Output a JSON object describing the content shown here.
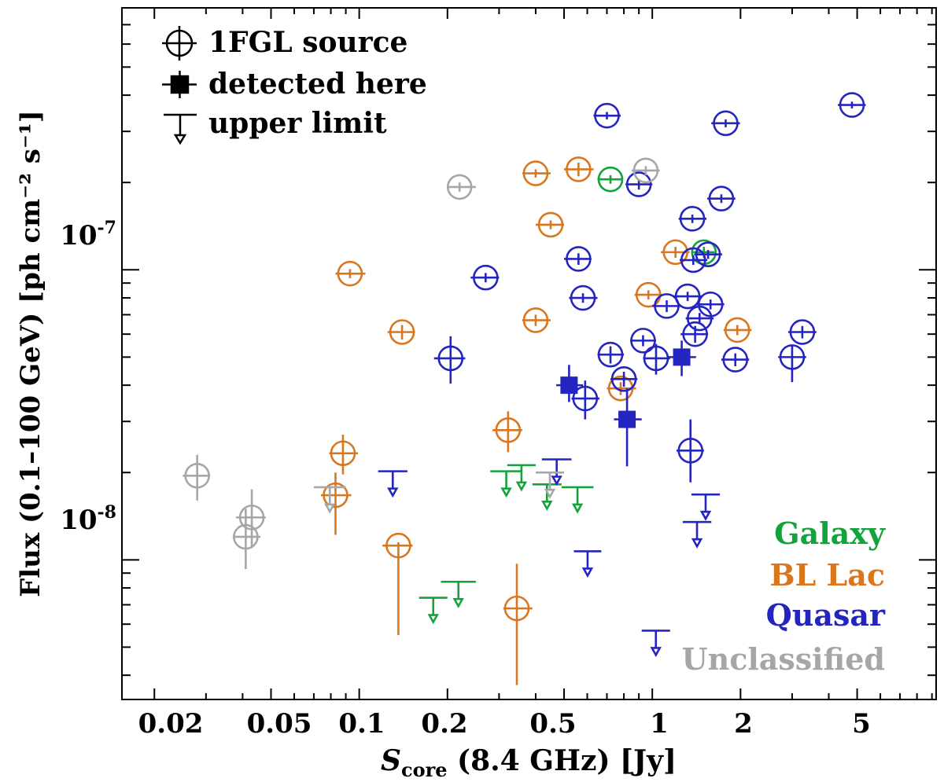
{
  "chart_data": {
    "type": "scatter",
    "title": "",
    "xlabel": {
      "var": "S",
      "sub": "core",
      "rest": "(8.4 GHz) [Jy]"
    },
    "ylabel": "Flux (0.1–100 GeV) [ph cm⁻² s⁻¹]",
    "xscale": "log",
    "yscale": "log",
    "xlim": [
      0.0155,
      9.3
    ],
    "ylim": [
      3.3e-09,
      8e-07
    ],
    "xticklabels": [
      {
        "value": 0.02,
        "label": "0.02"
      },
      {
        "value": 0.05,
        "label": "0.05"
      },
      {
        "value": 0.1,
        "label": "0.1"
      },
      {
        "value": 0.2,
        "label": "0.2"
      },
      {
        "value": 0.5,
        "label": "0.5"
      },
      {
        "value": 1,
        "label": "1"
      },
      {
        "value": 2,
        "label": "2"
      },
      {
        "value": 5,
        "label": "5"
      }
    ],
    "yticklabels": [
      {
        "value": 1e-07,
        "base": "10",
        "exp": "-7"
      },
      {
        "value": 1e-08,
        "base": "10",
        "exp": "-8"
      }
    ],
    "legend": {
      "position": "top-left",
      "items": [
        {
          "marker": "circle-cross",
          "label": "1FGL source"
        },
        {
          "marker": "filled-square",
          "label": "detected here"
        },
        {
          "marker": "upper-limit",
          "label": "upper limit"
        }
      ]
    },
    "classes": [
      {
        "name": "Galaxy",
        "color": "#12a33a"
      },
      {
        "name": "BL Lac",
        "color": "#d9771f"
      },
      {
        "name": "Quasar",
        "color": "#2424c0"
      },
      {
        "name": "Unclassified",
        "color": "#a6a6a6"
      }
    ],
    "series": [
      {
        "name": "Galaxy",
        "color": "#12a33a",
        "sources": [
          {
            "x": 0.72,
            "y": 2.05e-07,
            "xlo": 0.65,
            "xhi": 0.79,
            "ylo": 1.98e-07,
            "yhi": 2.12e-07
          },
          {
            "x": 1.5,
            "y": 1.15e-07,
            "xlo": 1.38,
            "xhi": 1.63,
            "ylo": 1.1e-07,
            "yhi": 1.2e-07
          }
        ],
        "upper_limits": [
          {
            "x": 0.18,
            "y": 7.4e-09,
            "xlo": 0.16,
            "xhi": 0.2
          },
          {
            "x": 0.22,
            "y": 8.4e-09,
            "xlo": 0.19,
            "xhi": 0.25
          },
          {
            "x": 0.32,
            "y": 2.02e-08,
            "xlo": 0.28,
            "xhi": 0.36
          },
          {
            "x": 0.36,
            "y": 2.12e-08,
            "xlo": 0.32,
            "xhi": 0.4
          },
          {
            "x": 0.44,
            "y": 1.82e-08,
            "xlo": 0.39,
            "xhi": 0.49
          },
          {
            "x": 0.56,
            "y": 1.78e-08,
            "xlo": 0.49,
            "xhi": 0.63
          }
        ]
      },
      {
        "name": "BL Lac",
        "color": "#d9771f",
        "sources": [
          {
            "x": 0.093,
            "y": 9.7e-08,
            "xlo": 0.083,
            "xhi": 0.105,
            "ylo": 9.35e-08,
            "yhi": 1.005e-07
          },
          {
            "x": 0.14,
            "y": 6.1e-08,
            "xlo": 0.125,
            "xhi": 0.155,
            "ylo": 5.75e-08,
            "yhi": 6.45e-08
          },
          {
            "x": 0.088,
            "y": 2.33e-08,
            "xlo": 0.079,
            "xhi": 0.099,
            "ylo": 1.97e-08,
            "yhi": 2.7e-08
          },
          {
            "x": 0.083,
            "y": 1.67e-08,
            "xlo": 0.074,
            "xhi": 0.094,
            "ylo": 1.22e-08,
            "yhi": 2e-08
          },
          {
            "x": 0.136,
            "y": 1.12e-08,
            "xlo": 0.12,
            "xhi": 0.152,
            "ylo": 5.5e-09,
            "yhi": 1.15e-08
          },
          {
            "x": 0.322,
            "y": 2.8e-08,
            "xlo": 0.285,
            "xhi": 0.36,
            "ylo": 2.35e-08,
            "yhi": 3.25e-08
          },
          {
            "x": 0.345,
            "y": 6.8e-09,
            "xlo": 0.31,
            "xhi": 0.39,
            "ylo": 3.7e-09,
            "yhi": 9.7e-09
          },
          {
            "x": 0.4,
            "y": 2.15e-07,
            "xlo": 0.36,
            "xhi": 0.45,
            "ylo": 2.08e-07,
            "yhi": 2.22e-07
          },
          {
            "x": 0.56,
            "y": 2.22e-07,
            "xlo": 0.5,
            "xhi": 0.63,
            "ylo": 2.1e-07,
            "yhi": 2.34e-07
          },
          {
            "x": 0.45,
            "y": 1.43e-07,
            "xlo": 0.4,
            "xhi": 0.5,
            "ylo": 1.38e-07,
            "yhi": 1.48e-07
          },
          {
            "x": 0.4,
            "y": 6.7e-08,
            "xlo": 0.36,
            "xhi": 0.45,
            "ylo": 6.4e-08,
            "yhi": 7e-08
          },
          {
            "x": 0.78,
            "y": 3.9e-08,
            "xlo": 0.7,
            "xhi": 0.88,
            "ylo": 3.7e-08,
            "yhi": 4.1e-08
          },
          {
            "x": 0.97,
            "y": 8.2e-08,
            "xlo": 0.87,
            "xhi": 1.08,
            "ylo": 7.9e-08,
            "yhi": 8.5e-08
          },
          {
            "x": 1.2,
            "y": 1.15e-07,
            "xlo": 1.07,
            "xhi": 1.34,
            "ylo": 1.1e-07,
            "yhi": 1.2e-07
          },
          {
            "x": 1.95,
            "y": 6.2e-08,
            "xlo": 1.75,
            "xhi": 2.18,
            "ylo": 5.95e-08,
            "yhi": 6.45e-08
          }
        ],
        "upper_limits": []
      },
      {
        "name": "Quasar",
        "color": "#2424c0",
        "sources": [
          {
            "x": 0.27,
            "y": 9.4e-08,
            "xlo": 0.24,
            "xhi": 0.3,
            "ylo": 9.05e-08,
            "yhi": 9.75e-08
          },
          {
            "x": 0.205,
            "y": 4.95e-08,
            "xlo": 0.18,
            "xhi": 0.23,
            "ylo": 4.05e-08,
            "yhi": 5.9e-08
          },
          {
            "x": 0.56,
            "y": 1.09e-07,
            "xlo": 0.5,
            "xhi": 0.62,
            "ylo": 1.04e-07,
            "yhi": 1.14e-07
          },
          {
            "x": 0.58,
            "y": 8e-08,
            "xlo": 0.52,
            "xhi": 0.65,
            "ylo": 7.7e-08,
            "yhi": 8.3e-08
          },
          {
            "x": 0.59,
            "y": 3.6e-08,
            "xlo": 0.53,
            "xhi": 0.66,
            "ylo": 3.05e-08,
            "yhi": 4.15e-08
          },
          {
            "x": 0.7,
            "y": 3.4e-07,
            "xlo": 0.63,
            "xhi": 0.78,
            "ylo": 3.3e-07,
            "yhi": 3.5e-07
          },
          {
            "x": 0.72,
            "y": 5.1e-08,
            "xlo": 0.65,
            "xhi": 0.8,
            "ylo": 4.75e-08,
            "yhi": 5.45e-08
          },
          {
            "x": 0.8,
            "y": 4.2e-08,
            "xlo": 0.72,
            "xhi": 0.89,
            "ylo": 3.95e-08,
            "yhi": 4.45e-08
          },
          {
            "x": 0.9,
            "y": 1.97e-07,
            "xlo": 0.81,
            "xhi": 1.0,
            "ylo": 1.89e-07,
            "yhi": 2.05e-07
          },
          {
            "x": 0.93,
            "y": 5.7e-08,
            "xlo": 0.84,
            "xhi": 1.03,
            "ylo": 5.45e-08,
            "yhi": 5.95e-08
          },
          {
            "x": 1.03,
            "y": 4.95e-08,
            "xlo": 0.93,
            "xhi": 1.15,
            "ylo": 4.35e-08,
            "yhi": 5.55e-08
          },
          {
            "x": 1.12,
            "y": 7.5e-08,
            "xlo": 1.0,
            "xhi": 1.25,
            "ylo": 7.15e-08,
            "yhi": 7.85e-08
          },
          {
            "x": 1.32,
            "y": 8.1e-08,
            "xlo": 1.18,
            "xhi": 1.47,
            "ylo": 7.8e-08,
            "yhi": 8.4e-08
          },
          {
            "x": 1.37,
            "y": 1.5e-07,
            "xlo": 1.23,
            "xhi": 1.53,
            "ylo": 1.45e-07,
            "yhi": 1.55e-07
          },
          {
            "x": 1.38,
            "y": 1.08e-07,
            "xlo": 1.24,
            "xhi": 1.54,
            "ylo": 1.04e-07,
            "yhi": 1.12e-07
          },
          {
            "x": 1.4,
            "y": 6e-08,
            "xlo": 1.25,
            "xhi": 1.55,
            "ylo": 5.6e-08,
            "yhi": 6.4e-08
          },
          {
            "x": 1.45,
            "y": 6.8e-08,
            "xlo": 1.3,
            "xhi": 1.62,
            "ylo": 6.5e-08,
            "yhi": 7.1e-08
          },
          {
            "x": 1.55,
            "y": 1.13e-07,
            "xlo": 1.39,
            "xhi": 1.73,
            "ylo": 1.09e-07,
            "yhi": 1.17e-07
          },
          {
            "x": 1.58,
            "y": 7.6e-08,
            "xlo": 1.41,
            "xhi": 1.76,
            "ylo": 7.3e-08,
            "yhi": 7.9e-08
          },
          {
            "x": 1.35,
            "y": 2.38e-08,
            "xlo": 1.21,
            "xhi": 1.5,
            "ylo": 1.85e-08,
            "yhi": 3.05e-08
          },
          {
            "x": 1.72,
            "y": 1.76e-07,
            "xlo": 1.54,
            "xhi": 1.92,
            "ylo": 1.7e-07,
            "yhi": 1.82e-07
          },
          {
            "x": 1.78,
            "y": 3.2e-07,
            "xlo": 1.59,
            "xhi": 1.99,
            "ylo": 3.1e-07,
            "yhi": 3.3e-07
          },
          {
            "x": 1.92,
            "y": 4.9e-08,
            "xlo": 1.72,
            "xhi": 2.14,
            "ylo": 4.65e-08,
            "yhi": 5.15e-08
          },
          {
            "x": 3.0,
            "y": 5e-08,
            "xlo": 2.69,
            "xhi": 3.35,
            "ylo": 4.1e-08,
            "yhi": 5.5e-08
          },
          {
            "x": 3.25,
            "y": 6.1e-08,
            "xlo": 2.91,
            "xhi": 3.63,
            "ylo": 5.8e-08,
            "yhi": 6.4e-08
          },
          {
            "x": 4.8,
            "y": 3.7e-07,
            "xlo": 4.3,
            "xhi": 5.35,
            "ylo": 3.6e-07,
            "yhi": 3.8e-07
          }
        ],
        "detections": [
          {
            "x": 0.52,
            "y": 4e-08,
            "xlo": 0.47,
            "xhi": 0.58,
            "ylo": 3.5e-08,
            "yhi": 4.7e-08
          },
          {
            "x": 0.82,
            "y": 3.05e-08,
            "xlo": 0.74,
            "xhi": 0.92,
            "ylo": 2.1e-08,
            "yhi": 3.9e-08
          },
          {
            "x": 1.26,
            "y": 5e-08,
            "xlo": 1.13,
            "xhi": 1.41,
            "ylo": 4.3e-08,
            "yhi": 5.7e-08
          }
        ],
        "upper_limits": [
          {
            "x": 0.13,
            "y": 2.02e-08,
            "xlo": 0.116,
            "xhi": 0.146
          },
          {
            "x": 0.47,
            "y": 2.22e-08,
            "xlo": 0.42,
            "xhi": 0.53
          },
          {
            "x": 0.6,
            "y": 1.07e-08,
            "xlo": 0.54,
            "xhi": 0.67
          },
          {
            "x": 1.03,
            "y": 5.7e-09,
            "xlo": 0.92,
            "xhi": 1.15
          },
          {
            "x": 1.42,
            "y": 1.35e-08,
            "xlo": 1.27,
            "xhi": 1.59
          },
          {
            "x": 1.52,
            "y": 1.68e-08,
            "xlo": 1.36,
            "xhi": 1.7
          }
        ]
      },
      {
        "name": "Unclassified",
        "color": "#a6a6a6",
        "sources": [
          {
            "x": 0.028,
            "y": 1.95e-08,
            "xlo": 0.025,
            "xhi": 0.031,
            "ylo": 1.6e-08,
            "yhi": 2.3e-08
          },
          {
            "x": 0.043,
            "y": 1.4e-08,
            "xlo": 0.038,
            "xhi": 0.048,
            "ylo": 1.1e-08,
            "yhi": 1.75e-08
          },
          {
            "x": 0.041,
            "y": 1.2e-08,
            "xlo": 0.037,
            "xhi": 0.046,
            "ylo": 9.3e-09,
            "yhi": 1.5e-08
          },
          {
            "x": 0.22,
            "y": 1.93e-07,
            "xlo": 0.2,
            "xhi": 0.25,
            "ylo": 1.86e-07,
            "yhi": 2e-07
          },
          {
            "x": 0.95,
            "y": 2.2e-07,
            "xlo": 0.85,
            "xhi": 1.06,
            "ylo": 2.12e-07,
            "yhi": 2.28e-07
          }
        ],
        "upper_limits": [
          {
            "x": 0.08,
            "y": 1.78e-08,
            "xlo": 0.07,
            "xhi": 0.09
          },
          {
            "x": 0.45,
            "y": 2e-08,
            "xlo": 0.4,
            "xhi": 0.5
          }
        ]
      }
    ]
  }
}
